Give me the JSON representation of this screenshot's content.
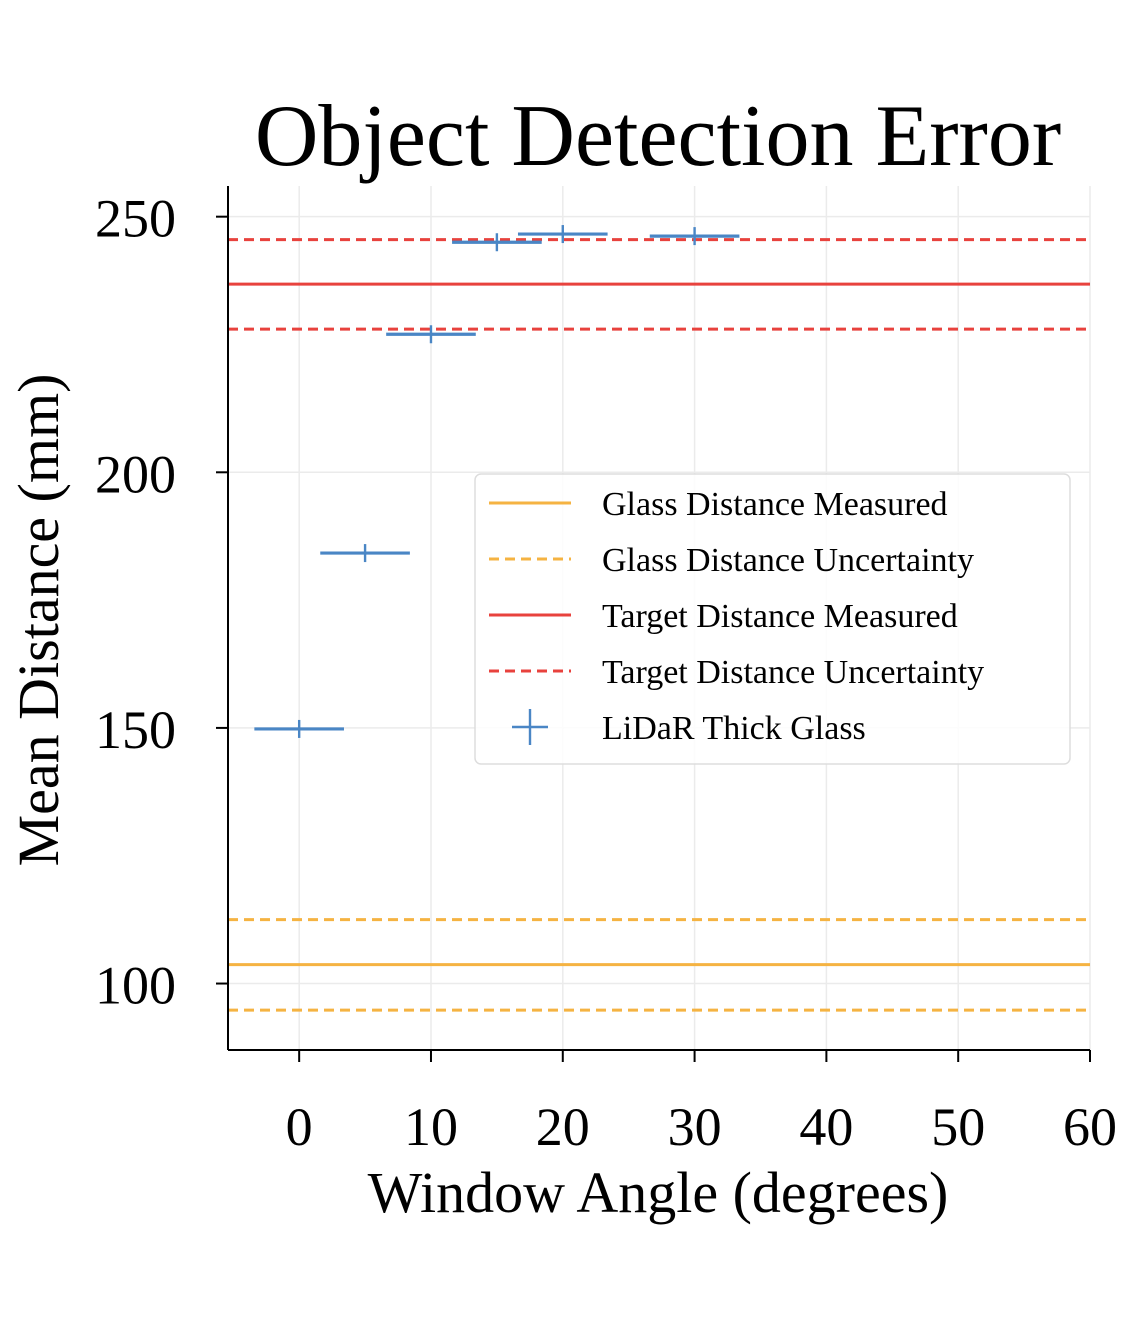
{
  "chart_data": {
    "type": "scatter",
    "title": "Object Detection Error",
    "xlabel": "Window Angle (degrees)",
    "ylabel": "Mean Distance (mm)",
    "xlim": [
      -5.4,
      60
    ],
    "ylim": [
      87,
      256
    ],
    "xticks": [
      0,
      10,
      20,
      30,
      40,
      50,
      60
    ],
    "yticks": [
      100,
      150,
      200,
      250
    ],
    "grid": true,
    "legend_position": "center-right",
    "colors": {
      "glass": "#f5b342",
      "target": "#e8423d",
      "lidar": "#4a86c5"
    },
    "reference_lines": [
      {
        "name": "Glass Distance Measured",
        "value": 103.7,
        "style": "solid",
        "color_key": "glass"
      },
      {
        "name": "Glass Distance Uncertainty",
        "value": 112.5,
        "style": "dashed",
        "color_key": "glass"
      },
      {
        "name": "Glass Distance Uncertainty",
        "value": 94.8,
        "style": "dashed",
        "color_key": "glass"
      },
      {
        "name": "Target Distance Measured",
        "value": 236.8,
        "style": "solid",
        "color_key": "target"
      },
      {
        "name": "Target Distance Uncertainty",
        "value": 245.5,
        "style": "dashed",
        "color_key": "target"
      },
      {
        "name": "Target Distance Uncertainty",
        "value": 228.0,
        "style": "dashed",
        "color_key": "target"
      }
    ],
    "series": [
      {
        "name": "LiDaR Thick Glass",
        "marker": "+",
        "color_key": "lidar",
        "points": [
          {
            "x": 0,
            "y": 149.8,
            "xerr": 3.4
          },
          {
            "x": 5,
            "y": 184.2,
            "xerr": 3.4
          },
          {
            "x": 10,
            "y": 227.0,
            "xerr": 3.4
          },
          {
            "x": 15,
            "y": 245.0,
            "xerr": 3.4
          },
          {
            "x": 20,
            "y": 246.6,
            "xerr": 3.4
          },
          {
            "x": 30,
            "y": 246.2,
            "xerr": 3.4
          }
        ]
      }
    ],
    "legend": [
      {
        "label": "Glass Distance Measured",
        "style": "solid",
        "color_key": "glass"
      },
      {
        "label": "Glass Distance Uncertainty",
        "style": "dashed",
        "color_key": "glass"
      },
      {
        "label": "Target Distance Measured",
        "style": "solid",
        "color_key": "target"
      },
      {
        "label": "Target Distance Uncertainty",
        "style": "dashed",
        "color_key": "target"
      },
      {
        "label": "LiDaR Thick Glass",
        "style": "marker",
        "color_key": "lidar"
      }
    ]
  }
}
